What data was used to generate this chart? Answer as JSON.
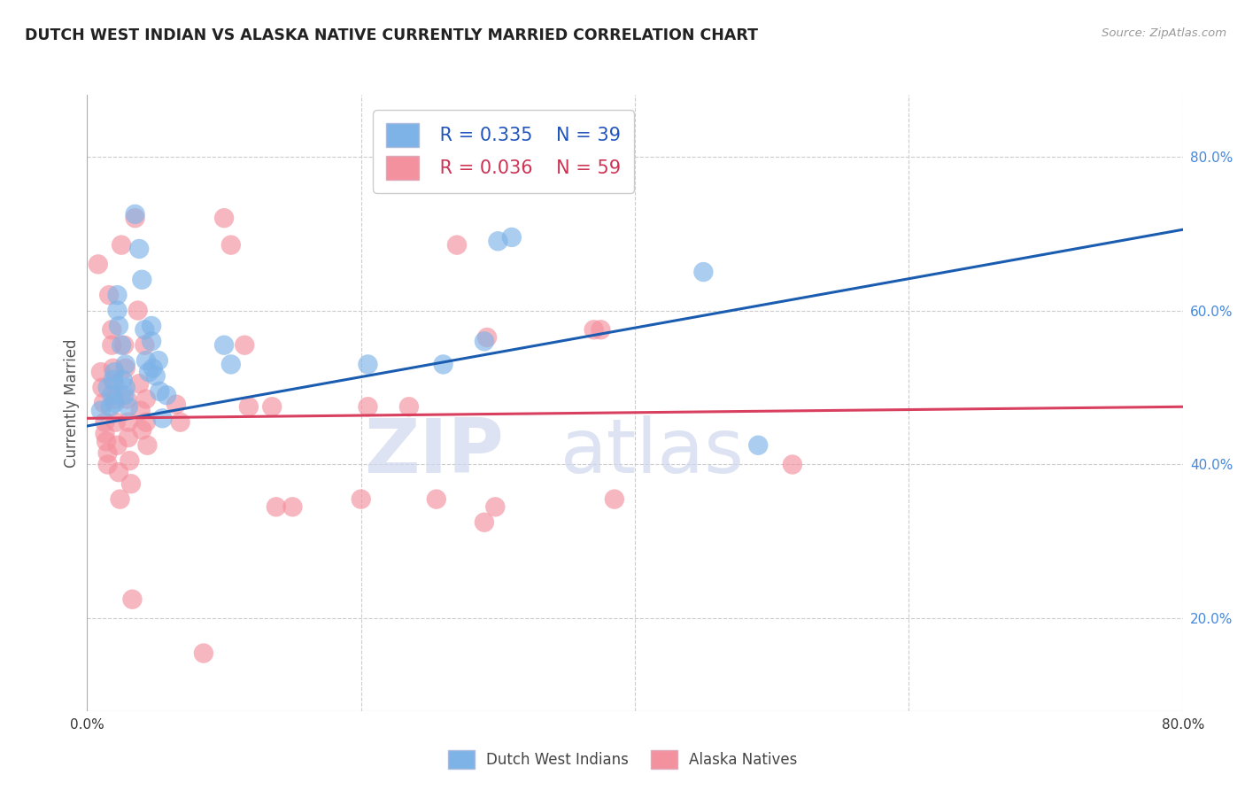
{
  "title": "DUTCH WEST INDIAN VS ALASKA NATIVE CURRENTLY MARRIED CORRELATION CHART",
  "source": "Source: ZipAtlas.com",
  "ylabel": "Currently Married",
  "right_yticks": [
    "80.0%",
    "60.0%",
    "40.0%",
    "20.0%"
  ],
  "right_ytick_vals": [
    0.8,
    0.6,
    0.4,
    0.2
  ],
  "xlim": [
    0.0,
    0.8
  ],
  "ylim": [
    0.08,
    0.88
  ],
  "blue_R": "0.335",
  "blue_N": "39",
  "pink_R": "0.036",
  "pink_N": "59",
  "blue_color": "#7EB3E8",
  "pink_color": "#F4919E",
  "blue_line_color": "#1A5CB0",
  "pink_line_color": "#D94060",
  "watermark_zip": "ZIP",
  "watermark_atlas": "atlas",
  "legend_label_blue": "Dutch West Indians",
  "legend_label_pink": "Alaska Natives",
  "blue_dots": [
    [
      0.01,
      0.47
    ],
    [
      0.015,
      0.5
    ],
    [
      0.017,
      0.475
    ],
    [
      0.018,
      0.49
    ],
    [
      0.019,
      0.51
    ],
    [
      0.02,
      0.52
    ],
    [
      0.02,
      0.48
    ],
    [
      0.022,
      0.6
    ],
    [
      0.022,
      0.62
    ],
    [
      0.023,
      0.58
    ],
    [
      0.025,
      0.555
    ],
    [
      0.026,
      0.51
    ],
    [
      0.027,
      0.49
    ],
    [
      0.028,
      0.53
    ],
    [
      0.028,
      0.5
    ],
    [
      0.03,
      0.475
    ],
    [
      0.035,
      0.725
    ],
    [
      0.038,
      0.68
    ],
    [
      0.04,
      0.64
    ],
    [
      0.042,
      0.575
    ],
    [
      0.043,
      0.535
    ],
    [
      0.045,
      0.52
    ],
    [
      0.047,
      0.58
    ],
    [
      0.047,
      0.56
    ],
    [
      0.048,
      0.525
    ],
    [
      0.05,
      0.515
    ],
    [
      0.052,
      0.535
    ],
    [
      0.053,
      0.495
    ],
    [
      0.055,
      0.46
    ],
    [
      0.058,
      0.49
    ],
    [
      0.1,
      0.555
    ],
    [
      0.105,
      0.53
    ],
    [
      0.205,
      0.53
    ],
    [
      0.26,
      0.53
    ],
    [
      0.29,
      0.56
    ],
    [
      0.3,
      0.69
    ],
    [
      0.31,
      0.695
    ],
    [
      0.45,
      0.65
    ],
    [
      0.49,
      0.425
    ]
  ],
  "pink_dots": [
    [
      0.008,
      0.66
    ],
    [
      0.01,
      0.52
    ],
    [
      0.011,
      0.5
    ],
    [
      0.012,
      0.48
    ],
    [
      0.013,
      0.455
    ],
    [
      0.013,
      0.44
    ],
    [
      0.014,
      0.43
    ],
    [
      0.015,
      0.415
    ],
    [
      0.015,
      0.4
    ],
    [
      0.016,
      0.62
    ],
    [
      0.018,
      0.575
    ],
    [
      0.018,
      0.555
    ],
    [
      0.019,
      0.525
    ],
    [
      0.02,
      0.505
    ],
    [
      0.02,
      0.485
    ],
    [
      0.021,
      0.455
    ],
    [
      0.022,
      0.425
    ],
    [
      0.023,
      0.39
    ],
    [
      0.024,
      0.355
    ],
    [
      0.025,
      0.685
    ],
    [
      0.027,
      0.555
    ],
    [
      0.028,
      0.525
    ],
    [
      0.029,
      0.485
    ],
    [
      0.03,
      0.455
    ],
    [
      0.03,
      0.435
    ],
    [
      0.031,
      0.405
    ],
    [
      0.032,
      0.375
    ],
    [
      0.033,
      0.225
    ],
    [
      0.035,
      0.72
    ],
    [
      0.037,
      0.6
    ],
    [
      0.038,
      0.505
    ],
    [
      0.039,
      0.47
    ],
    [
      0.04,
      0.445
    ],
    [
      0.042,
      0.555
    ],
    [
      0.043,
      0.485
    ],
    [
      0.043,
      0.455
    ],
    [
      0.044,
      0.425
    ],
    [
      0.065,
      0.478
    ],
    [
      0.068,
      0.455
    ],
    [
      0.1,
      0.72
    ],
    [
      0.105,
      0.685
    ],
    [
      0.115,
      0.555
    ],
    [
      0.118,
      0.475
    ],
    [
      0.135,
      0.475
    ],
    [
      0.138,
      0.345
    ],
    [
      0.15,
      0.345
    ],
    [
      0.2,
      0.355
    ],
    [
      0.205,
      0.475
    ],
    [
      0.235,
      0.475
    ],
    [
      0.255,
      0.355
    ],
    [
      0.27,
      0.685
    ],
    [
      0.29,
      0.325
    ],
    [
      0.292,
      0.565
    ],
    [
      0.298,
      0.345
    ],
    [
      0.37,
      0.575
    ],
    [
      0.375,
      0.575
    ],
    [
      0.385,
      0.355
    ],
    [
      0.515,
      0.4
    ],
    [
      0.085,
      0.155
    ]
  ],
  "blue_line_x": [
    0.0,
    0.8
  ],
  "blue_line_y": [
    0.45,
    0.705
  ],
  "pink_line_x": [
    0.0,
    0.8
  ],
  "pink_line_y": [
    0.46,
    0.475
  ]
}
